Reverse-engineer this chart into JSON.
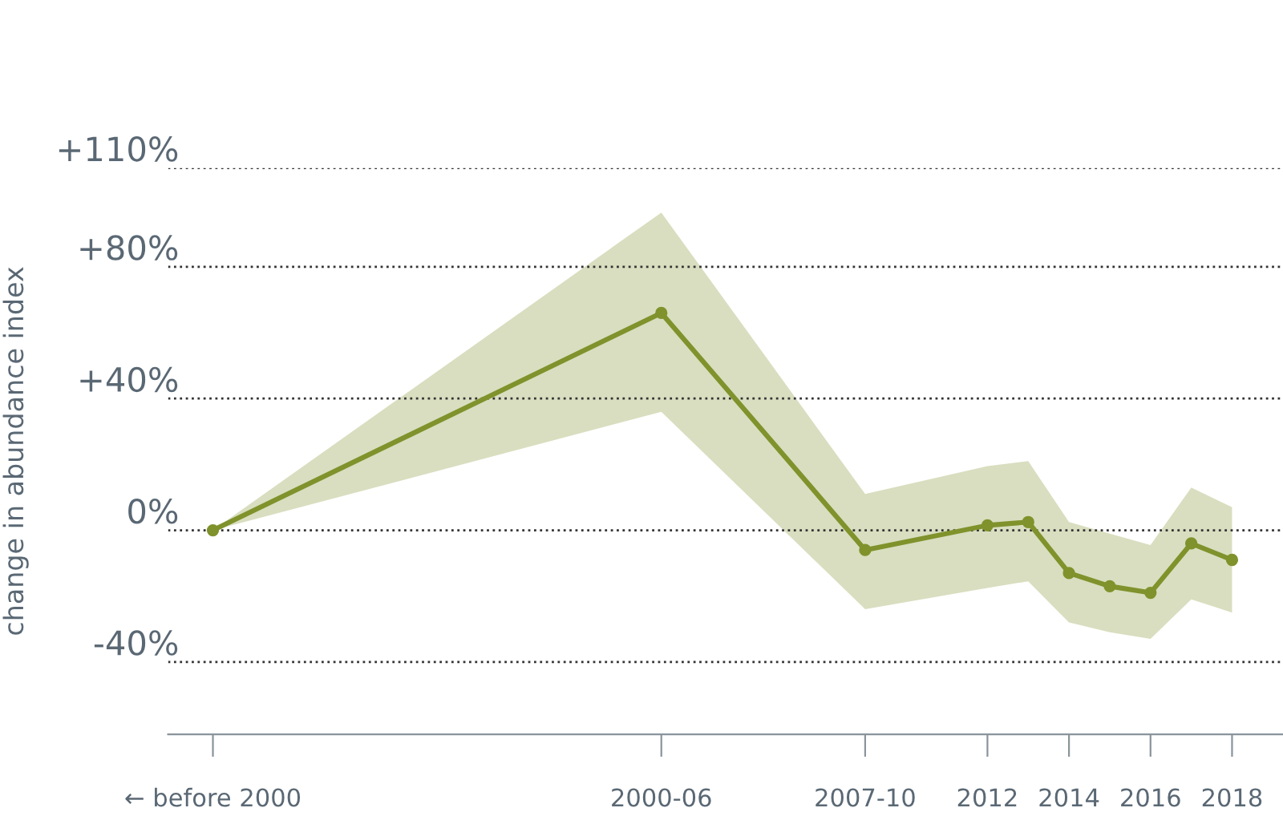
{
  "chart_data": {
    "type": "line",
    "ylabel": "change in abundance index",
    "x": [
      1993,
      2004,
      2009,
      2012,
      2013,
      2014,
      2015,
      2016,
      2017,
      2018
    ],
    "series": [
      {
        "color": "#7f922c",
        "values": [
          0,
          66,
          -6,
          1.5,
          2.5,
          -13,
          -17,
          -19,
          -4,
          -9
        ],
        "lower": [
          0,
          36,
          -24,
          -17.5,
          -15.5,
          -28,
          -31,
          -33,
          -21,
          -25
        ],
        "upper": [
          0,
          96.5,
          11,
          19.5,
          21,
          2.5,
          -1,
          -4.5,
          13,
          7
        ]
      }
    ],
    "xlim": [
      1991.9,
      2019.25
    ],
    "xticks": [
      {
        "value": 1993,
        "label": "← before 2000"
      },
      {
        "value": 2004,
        "label": "2000-06"
      },
      {
        "value": 2009,
        "label": "2007-10"
      },
      {
        "value": 2012,
        "label": "2012"
      },
      {
        "value": 2014,
        "label": "2014"
      },
      {
        "value": 2016,
        "label": "2016"
      },
      {
        "value": 2018,
        "label": "2018"
      }
    ],
    "ylim": [
      -62,
      110
    ],
    "yticks": [
      {
        "value": -40,
        "label": "-40%"
      },
      {
        "value": 0,
        "label": "0%"
      },
      {
        "value": 40,
        "label": "+40%"
      },
      {
        "value": 80,
        "label": "+80%"
      },
      {
        "value": 110,
        "label": "+110%"
      }
    ],
    "grid": "y",
    "marker": "circle",
    "line_style": "solid"
  }
}
